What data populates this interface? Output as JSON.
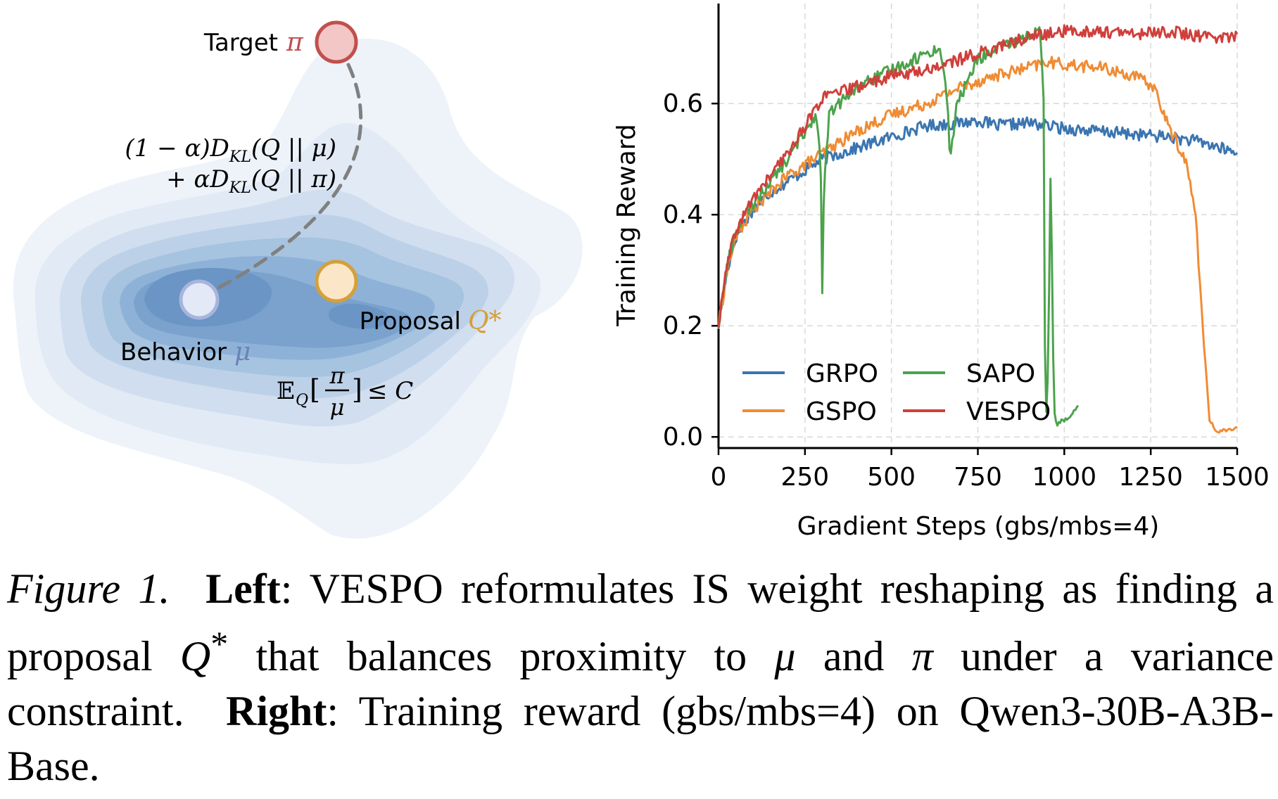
{
  "left_diagram": {
    "target_label": "Target",
    "target_symbol": "π",
    "kl_objective_line1": "(1 − α)D",
    "kl_objective_line1_sub": "KL",
    "kl_objective_line1_tail": "(Q || μ)",
    "kl_objective_line2": "+ αD",
    "kl_objective_line2_sub": "KL",
    "kl_objective_line2_tail": "(Q || π)",
    "proposal_label": "Proposal",
    "proposal_symbol": "Q*",
    "behavior_label": "Behavior",
    "behavior_symbol": "μ",
    "constraint_prefix": "𝔼",
    "constraint_sub": "Q",
    "constraint_num": "π",
    "constraint_den": "μ",
    "constraint_suffix": "≤ C",
    "colors": {
      "target": "#c0504d",
      "target_fill": "#f2c7c5",
      "proposal": "#d4a03a",
      "proposal_fill": "#fbe6c8",
      "behavior": "#6b82b8",
      "behavior_fill": "#e4e9f7"
    }
  },
  "chart_data": {
    "type": "line",
    "title": "",
    "xlabel": "Gradient Steps (gbs/mbs=4)",
    "ylabel": "Training Reward",
    "xlim": [
      0,
      1500
    ],
    "ylim": [
      -0.02,
      0.78
    ],
    "xticks": [
      0,
      250,
      500,
      750,
      1000,
      1250,
      1500
    ],
    "yticks": [
      0.0,
      0.2,
      0.4,
      0.6
    ],
    "ytick_labels": [
      "0.0",
      "0.2",
      "0.4",
      "0.6"
    ],
    "grid": true,
    "legend_position": "lower-left",
    "series": [
      {
        "name": "GRPO",
        "color": "#3a75b0",
        "x": [
          0,
          25,
          50,
          100,
          150,
          200,
          250,
          300,
          400,
          500,
          600,
          700,
          750,
          800,
          900,
          1000,
          1100,
          1200,
          1300,
          1400,
          1500
        ],
        "y": [
          0.2,
          0.3,
          0.36,
          0.41,
          0.44,
          0.46,
          0.48,
          0.5,
          0.52,
          0.54,
          0.56,
          0.565,
          0.57,
          0.56,
          0.565,
          0.555,
          0.55,
          0.545,
          0.54,
          0.53,
          0.51
        ]
      },
      {
        "name": "GSPO",
        "color": "#ef8c34",
        "x": [
          0,
          25,
          50,
          100,
          150,
          200,
          250,
          300,
          400,
          500,
          600,
          700,
          800,
          900,
          950,
          1000,
          1100,
          1200,
          1260,
          1300,
          1350,
          1380,
          1400,
          1420,
          1440,
          1500
        ],
        "y": [
          0.2,
          0.3,
          0.36,
          0.41,
          0.44,
          0.47,
          0.49,
          0.51,
          0.55,
          0.58,
          0.6,
          0.63,
          0.65,
          0.665,
          0.675,
          0.67,
          0.665,
          0.65,
          0.63,
          0.56,
          0.5,
          0.4,
          0.2,
          0.03,
          0.01,
          0.015
        ]
      },
      {
        "name": "SAPO",
        "color": "#4ba34b",
        "x": [
          0,
          25,
          50,
          100,
          150,
          200,
          250,
          280,
          295,
          300,
          305,
          320,
          350,
          400,
          500,
          600,
          640,
          660,
          670,
          690,
          750,
          850,
          930,
          940,
          945,
          950,
          955,
          960,
          965,
          970,
          975,
          980,
          990,
          1000,
          1020,
          1040
        ],
        "y": [
          0.2,
          0.31,
          0.37,
          0.42,
          0.46,
          0.5,
          0.55,
          0.58,
          0.52,
          0.25,
          0.45,
          0.58,
          0.6,
          0.63,
          0.66,
          0.69,
          0.7,
          0.62,
          0.5,
          0.6,
          0.68,
          0.71,
          0.73,
          0.6,
          0.05,
          0.04,
          0.2,
          0.46,
          0.3,
          0.05,
          0.03,
          0.02,
          0.03,
          0.03,
          0.04,
          0.055
        ]
      },
      {
        "name": "VESPO",
        "color": "#d03f3b",
        "x": [
          0,
          25,
          50,
          100,
          150,
          200,
          250,
          300,
          400,
          500,
          600,
          700,
          800,
          900,
          1000,
          1100,
          1200,
          1300,
          1400,
          1500
        ],
        "y": [
          0.2,
          0.31,
          0.37,
          0.43,
          0.47,
          0.51,
          0.56,
          0.61,
          0.63,
          0.65,
          0.66,
          0.68,
          0.7,
          0.72,
          0.73,
          0.73,
          0.725,
          0.73,
          0.72,
          0.72
        ]
      }
    ]
  },
  "caption": {
    "figure_label": "Figure 1.",
    "left_label": "Left",
    "left_text_1": ": VESPO reformulates IS weight reshaping as finding a proposal ",
    "left_math_q": "Q",
    "left_math_star": "*",
    "left_text_2": " that balances proximity to ",
    "left_math_mu": "μ",
    "left_text_3": " and ",
    "left_math_pi": "π",
    "left_text_4": " under a variance constraint.",
    "right_label": "Right",
    "right_text": ": Training reward (gbs/mbs=4) on Qwen3-30B-A3B-Base."
  }
}
